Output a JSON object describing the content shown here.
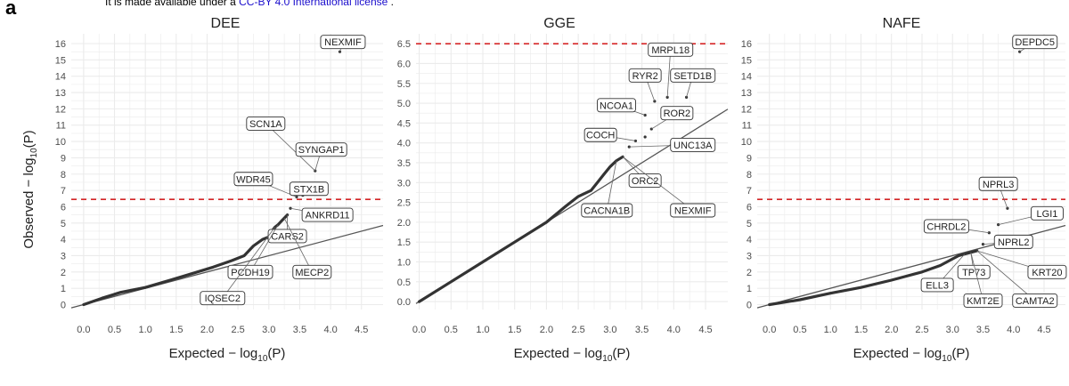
{
  "panel_letter": "a",
  "license": {
    "prefix": "It is made available under a",
    "link_text": "CC-BY 4.0 International license",
    "suffix": "."
  },
  "y_axis_label": "Observed − log",
  "x_axis_label": "Expected − log",
  "log_subscript": "10",
  "log_arg": "(P)",
  "colors": {
    "threshold": "#d62728",
    "diagonal": "#555555",
    "points": "#333333",
    "grid": "#ebebeb",
    "label_border": "#333333",
    "text": "#333333"
  },
  "chart_data": [
    {
      "type": "scatter",
      "title": "DEE",
      "xlabel": "Expected − log10(P)",
      "ylabel": "Observed − log10(P)",
      "xlim": [
        -0.2,
        4.85
      ],
      "ylim": [
        -0.3,
        16.6
      ],
      "xticks": [
        0.0,
        0.5,
        1.0,
        1.5,
        2.0,
        2.5,
        3.0,
        3.5,
        4.0,
        4.5
      ],
      "xtick_labels": [
        "0.0",
        "0.5",
        "1.0",
        "1.5",
        "2.0",
        "2.5",
        "3.0",
        "3.5",
        "4.0",
        "4.5"
      ],
      "yticks": [
        0,
        1,
        2,
        3,
        4,
        5,
        6,
        7,
        8,
        9,
        10,
        11,
        12,
        13,
        14,
        15,
        16
      ],
      "ytick_labels": [
        "0",
        "1",
        "2",
        "3",
        "4",
        "5",
        "6",
        "7",
        "8",
        "9",
        "10",
        "11",
        "12",
        "13",
        "14",
        "15",
        "16"
      ],
      "threshold": 6.45,
      "diagonal": [
        [
          -0.2,
          -0.2
        ],
        [
          4.85,
          4.85
        ]
      ],
      "curve": [
        [
          0,
          0
        ],
        [
          0.3,
          0.4
        ],
        [
          0.6,
          0.75
        ],
        [
          1.0,
          1.05
        ],
        [
          1.4,
          1.5
        ],
        [
          1.8,
          1.95
        ],
        [
          2.1,
          2.3
        ],
        [
          2.4,
          2.7
        ],
        [
          2.6,
          3.0
        ],
        [
          2.75,
          3.6
        ],
        [
          2.9,
          4.0
        ],
        [
          3.0,
          4.15
        ],
        [
          3.05,
          4.5
        ],
        [
          3.1,
          4.75
        ],
        [
          3.15,
          4.9
        ],
        [
          3.2,
          5.1
        ],
        [
          3.25,
          5.3
        ],
        [
          3.3,
          5.5
        ]
      ],
      "points": [
        [
          3.35,
          5.9
        ],
        [
          3.45,
          6.6
        ],
        [
          3.55,
          6.7
        ],
        [
          3.65,
          7.2
        ],
        [
          3.75,
          8.2
        ],
        [
          4.15,
          15.5
        ]
      ],
      "labels": [
        {
          "text": "NEXMIF",
          "x": 4.15,
          "y": 15.5,
          "lx": 4.2,
          "ly": 16.1
        },
        {
          "text": "SCN1A",
          "x": 3.75,
          "y": 8.2,
          "lx": 2.95,
          "ly": 11.1
        },
        {
          "text": "SYNGAP1",
          "x": 3.75,
          "y": 8.2,
          "lx": 3.85,
          "ly": 9.5
        },
        {
          "text": "WDR45",
          "x": 3.45,
          "y": 6.6,
          "lx": 2.75,
          "ly": 7.7
        },
        {
          "text": "STX1B",
          "x": 3.65,
          "y": 7.2,
          "lx": 3.65,
          "ly": 7.1
        },
        {
          "text": "ANKRD11",
          "x": 3.35,
          "y": 5.9,
          "lx": 3.95,
          "ly": 5.5
        },
        {
          "text": "CARS2",
          "x": 3.3,
          "y": 5.5,
          "lx": 3.3,
          "ly": 4.2
        },
        {
          "text": "PCDH19",
          "x": 3.15,
          "y": 4.9,
          "lx": 2.7,
          "ly": 2.0
        },
        {
          "text": "MECP2",
          "x": 3.25,
          "y": 5.3,
          "lx": 3.7,
          "ly": 2.0
        },
        {
          "text": "IQSEC2",
          "x": 3.1,
          "y": 4.75,
          "lx": 2.25,
          "ly": 0.4
        }
      ]
    },
    {
      "type": "scatter",
      "title": "GGE",
      "xlabel": "Expected − log10(P)",
      "ylabel": "Observed − log10(P)",
      "xlim": [
        -0.05,
        4.85
      ],
      "ylim": [
        -0.2,
        6.75
      ],
      "xticks": [
        0.0,
        0.5,
        1.0,
        1.5,
        2.0,
        2.5,
        3.0,
        3.5,
        4.0,
        4.5
      ],
      "xtick_labels": [
        "0.0",
        "0.5",
        "1.0",
        "1.5",
        "2.0",
        "2.5",
        "3.0",
        "3.5",
        "4.0",
        "4.5"
      ],
      "yticks": [
        0.0,
        0.5,
        1.0,
        1.5,
        2.0,
        2.5,
        3.0,
        3.5,
        4.0,
        4.5,
        5.0,
        5.5,
        6.0,
        6.5
      ],
      "ytick_labels": [
        "0.0",
        "0.5",
        "1.0",
        "1.5",
        "2.0",
        "2.5",
        "3.0",
        "3.5",
        "4.0",
        "4.5",
        "5.0",
        "5.5",
        "6.0",
        "6.5"
      ],
      "threshold": 6.5,
      "diagonal": [
        [
          -0.05,
          -0.05
        ],
        [
          4.85,
          4.85
        ]
      ],
      "curve": [
        [
          0,
          0
        ],
        [
          0.5,
          0.5
        ],
        [
          1.0,
          1.0
        ],
        [
          1.5,
          1.5
        ],
        [
          2.0,
          2.0
        ],
        [
          2.3,
          2.4
        ],
        [
          2.5,
          2.65
        ],
        [
          2.7,
          2.8
        ],
        [
          2.8,
          3.0
        ],
        [
          2.9,
          3.2
        ],
        [
          3.0,
          3.4
        ],
        [
          3.1,
          3.55
        ],
        [
          3.2,
          3.65
        ]
      ],
      "points": [
        [
          3.3,
          3.9
        ],
        [
          3.4,
          4.05
        ],
        [
          3.55,
          4.15
        ],
        [
          3.65,
          4.35
        ],
        [
          3.55,
          4.7
        ],
        [
          3.7,
          5.05
        ],
        [
          3.9,
          5.15
        ],
        [
          4.2,
          5.15
        ]
      ],
      "labels": [
        {
          "text": "MRPL18",
          "x": 3.9,
          "y": 5.15,
          "lx": 3.95,
          "ly": 6.35
        },
        {
          "text": "RYR2",
          "x": 3.7,
          "y": 5.05,
          "lx": 3.55,
          "ly": 5.7
        },
        {
          "text": "SETD1B",
          "x": 4.2,
          "y": 5.15,
          "lx": 4.3,
          "ly": 5.7
        },
        {
          "text": "NCOA1",
          "x": 3.55,
          "y": 4.7,
          "lx": 3.1,
          "ly": 4.95
        },
        {
          "text": "ROR2",
          "x": 3.65,
          "y": 4.35,
          "lx": 4.05,
          "ly": 4.75
        },
        {
          "text": "COCH",
          "x": 3.4,
          "y": 4.05,
          "lx": 2.85,
          "ly": 4.2
        },
        {
          "text": "UNC13A",
          "x": 3.3,
          "y": 3.9,
          "lx": 4.3,
          "ly": 3.95
        },
        {
          "text": "ORC2",
          "x": 3.2,
          "y": 3.65,
          "lx": 3.55,
          "ly": 3.05
        },
        {
          "text": "CACNA1B",
          "x": 3.1,
          "y": 3.55,
          "lx": 2.95,
          "ly": 2.3
        },
        {
          "text": "NEXMIF",
          "x": 3.2,
          "y": 3.65,
          "lx": 4.3,
          "ly": 2.3
        }
      ]
    },
    {
      "type": "scatter",
      "title": "NAFE",
      "xlabel": "Expected − log10(P)",
      "ylabel": "Observed − log10(P)",
      "xlim": [
        -0.2,
        4.85
      ],
      "ylim": [
        -0.3,
        16.6
      ],
      "xticks": [
        0.0,
        0.5,
        1.0,
        1.5,
        2.0,
        2.5,
        3.0,
        3.5,
        4.0,
        4.5
      ],
      "xtick_labels": [
        "0.0",
        "0.5",
        "1.0",
        "1.5",
        "2.0",
        "2.5",
        "3.0",
        "3.5",
        "4.0",
        "4.5"
      ],
      "yticks": [
        0,
        1,
        2,
        3,
        4,
        5,
        6,
        7,
        8,
        9,
        10,
        11,
        12,
        13,
        14,
        15,
        16
      ],
      "ytick_labels": [
        "0",
        "1",
        "2",
        "3",
        "4",
        "5",
        "6",
        "7",
        "8",
        "9",
        "10",
        "11",
        "12",
        "13",
        "14",
        "15",
        "16"
      ],
      "threshold": 6.45,
      "diagonal": [
        [
          -0.2,
          -0.2
        ],
        [
          4.85,
          4.85
        ]
      ],
      "curve": [
        [
          0,
          0
        ],
        [
          0.5,
          0.3
        ],
        [
          1.0,
          0.7
        ],
        [
          1.5,
          1.05
        ],
        [
          2.0,
          1.5
        ],
        [
          2.5,
          2.0
        ],
        [
          2.8,
          2.4
        ],
        [
          3.0,
          2.8
        ],
        [
          3.1,
          3.0
        ],
        [
          3.2,
          3.1
        ],
        [
          3.3,
          3.2
        ],
        [
          3.4,
          3.3
        ]
      ],
      "points": [
        [
          3.5,
          3.7
        ],
        [
          3.6,
          4.4
        ],
        [
          3.75,
          4.9
        ],
        [
          3.9,
          5.9
        ],
        [
          4.1,
          15.5
        ]
      ],
      "labels": [
        {
          "text": "DEPDC5",
          "x": 4.1,
          "y": 15.5,
          "lx": 4.35,
          "ly": 16.1
        },
        {
          "text": "NPRL3",
          "x": 3.9,
          "y": 5.9,
          "lx": 3.75,
          "ly": 7.4
        },
        {
          "text": "LGI1",
          "x": 3.75,
          "y": 4.9,
          "lx": 4.55,
          "ly": 5.6
        },
        {
          "text": "CHRDL2",
          "x": 3.6,
          "y": 4.4,
          "lx": 2.9,
          "ly": 4.8
        },
        {
          "text": "NPRL2",
          "x": 3.5,
          "y": 3.7,
          "lx": 4.0,
          "ly": 3.85
        },
        {
          "text": "TP73",
          "x": 3.3,
          "y": 3.2,
          "lx": 3.35,
          "ly": 2.0
        },
        {
          "text": "KRT20",
          "x": 3.4,
          "y": 3.3,
          "lx": 4.55,
          "ly": 2.0
        },
        {
          "text": "ELL3",
          "x": 3.2,
          "y": 3.1,
          "lx": 2.75,
          "ly": 1.2
        },
        {
          "text": "KMT2E",
          "x": 3.3,
          "y": 3.2,
          "lx": 3.5,
          "ly": 0.25
        },
        {
          "text": "CAMTA2",
          "x": 3.4,
          "y": 3.3,
          "lx": 4.35,
          "ly": 0.25
        }
      ]
    }
  ]
}
